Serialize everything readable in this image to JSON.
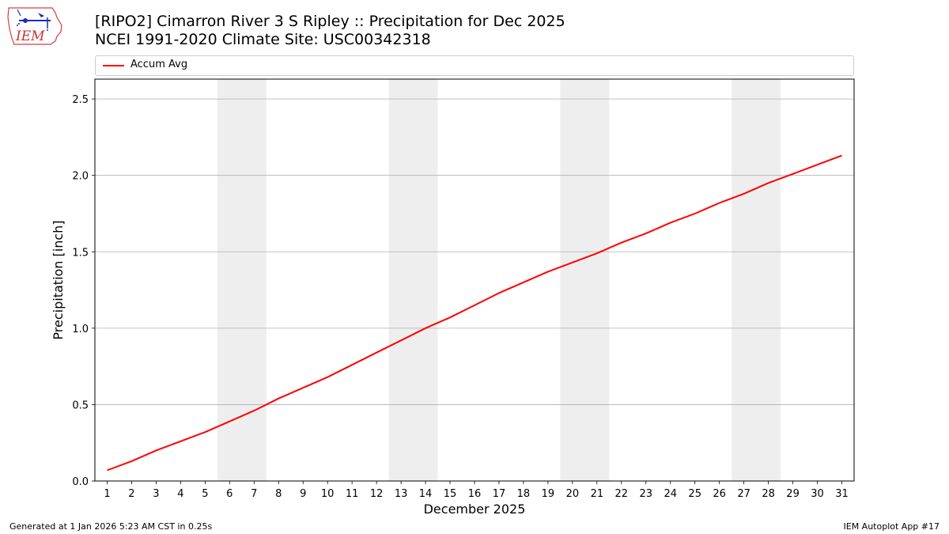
{
  "header": {
    "title_line1": "[RIPO2] Cimarron River 3 S Ripley :: Precipitation for Dec 2025",
    "title_line2": "NCEI 1991-2020 Climate Site: USC00342318"
  },
  "logo": {
    "text": "IEM",
    "icon": "iem-iowa-logo-icon"
  },
  "footer": {
    "generated": "Generated at 1 Jan 2026 5:23 AM CST in 0.25s",
    "app": "IEM Autoplot App #17"
  },
  "colors": {
    "series": "#ff0000",
    "weekend_band": "#eeeeee",
    "grid": "#b0b0b0"
  },
  "chart_data": {
    "type": "line",
    "xlabel": "December 2025",
    "ylabel": "Precipitation [inch]",
    "xlim": [
      0.5,
      31.5
    ],
    "ylim": [
      0,
      2.63
    ],
    "yticks": [
      0.0,
      0.5,
      1.0,
      1.5,
      2.0,
      2.5
    ],
    "ytick_labels": [
      "0.0",
      "0.5",
      "1.0",
      "1.5",
      "2.0",
      "2.5"
    ],
    "xticks": [
      1,
      2,
      3,
      4,
      5,
      6,
      7,
      8,
      9,
      10,
      11,
      12,
      13,
      14,
      15,
      16,
      17,
      18,
      19,
      20,
      21,
      22,
      23,
      24,
      25,
      26,
      27,
      28,
      29,
      30,
      31
    ],
    "grid": "horizontal",
    "legend_placement": "top",
    "weekend_bands": [
      [
        6,
        7
      ],
      [
        13,
        14
      ],
      [
        20,
        21
      ],
      [
        27,
        28
      ]
    ],
    "series": [
      {
        "name": "Accum Avg",
        "color": "#ff0000",
        "x": [
          1,
          2,
          3,
          4,
          5,
          6,
          7,
          8,
          9,
          10,
          11,
          12,
          13,
          14,
          15,
          16,
          17,
          18,
          19,
          20,
          21,
          22,
          23,
          24,
          25,
          26,
          27,
          28,
          29,
          30,
          31
        ],
        "values": [
          0.07,
          0.13,
          0.2,
          0.26,
          0.32,
          0.39,
          0.46,
          0.54,
          0.61,
          0.68,
          0.76,
          0.84,
          0.92,
          1.0,
          1.07,
          1.15,
          1.23,
          1.3,
          1.37,
          1.43,
          1.49,
          1.56,
          1.62,
          1.69,
          1.75,
          1.82,
          1.88,
          1.95,
          2.01,
          2.07,
          2.13
        ]
      }
    ]
  }
}
